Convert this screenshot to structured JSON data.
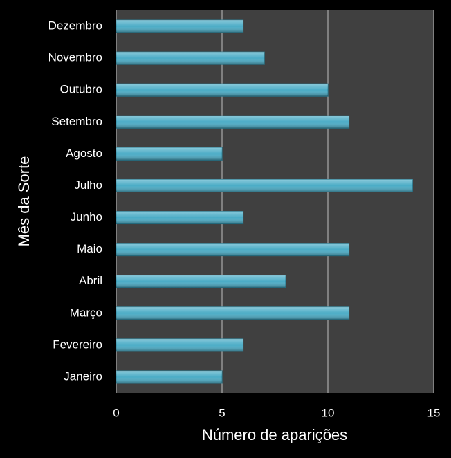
{
  "chart_data": {
    "type": "bar",
    "orientation": "horizontal",
    "x_label": "Número de aparições",
    "y_label": "Mês da Sorte",
    "categories": [
      "Janeiro",
      "Fevereiro",
      "Março",
      "Abril",
      "Maio",
      "Junho",
      "Julho",
      "Agosto",
      "Setembro",
      "Outubro",
      "Novembro",
      "Dezembro"
    ],
    "values": [
      5,
      6,
      11,
      8,
      11,
      6,
      14,
      5,
      11,
      10,
      7,
      6
    ],
    "color": "#4bacc6",
    "xlim": [
      0,
      15
    ],
    "xticks": [
      0,
      5,
      10,
      15
    ],
    "grid": true
  }
}
